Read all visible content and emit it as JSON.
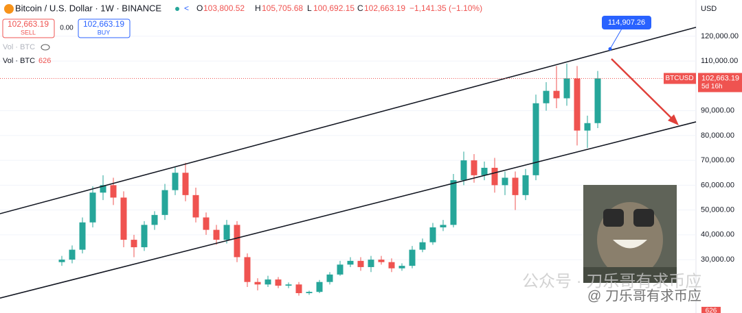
{
  "header": {
    "symbol": "Bitcoin / U.S. Dollar · 1W · BINANCE",
    "open_label": "O",
    "open": "103,800.52",
    "high_label": "H",
    "high": "105,705.68",
    "low_label": "L",
    "low": "100,692.15",
    "close_label": "C",
    "close": "102,663.19",
    "change": "−1,141.35 (−1.10%)"
  },
  "trade": {
    "sell_price": "102,663.19",
    "sell": "SELL",
    "spread": "0.00",
    "buy_price": "102,663.19",
    "buy": "BUY"
  },
  "indicators": {
    "vol_hidden": "Vol · BTC",
    "vol": "Vol · BTC",
    "vol_value": "626"
  },
  "currency": "USD",
  "price_tag": {
    "symbol": "BTCUSD",
    "price": "102,663.19",
    "countdown": "5d 16h"
  },
  "volume_tag": "626",
  "watermark": {
    "main": "公众号 · 刀乐哥有求币应",
    "handle": "@ 刀乐哥有求币应"
  },
  "chart_data": {
    "type": "candlestick",
    "open": [
      29000,
      30000,
      34000,
      45000,
      57000,
      60000,
      55000,
      38000,
      35000,
      44000,
      48000,
      58000,
      65000,
      56000,
      47000,
      42000,
      38000,
      44000,
      31000,
      21000,
      20000,
      22000,
      19500,
      20000,
      16500,
      17000,
      21000,
      24000,
      28000,
      29500,
      27000,
      30000,
      29000,
      26500,
      27500,
      34000,
      37000,
      43000,
      44000,
      62000,
      70000,
      64000,
      67000,
      60000,
      63000,
      56000,
      64000,
      93000,
      98000,
      95000,
      103000,
      82000,
      85000
    ],
    "high": [
      31500,
      35700,
      47000,
      59500,
      64000,
      63000,
      57500,
      40000,
      45500,
      49500,
      60500,
      67500,
      69000,
      59000,
      49000,
      44000,
      46000,
      45500,
      32500,
      22500,
      23500,
      23000,
      20800,
      21000,
      17500,
      21800,
      25000,
      29500,
      31000,
      31000,
      31500,
      31500,
      30500,
      28500,
      35500,
      38500,
      44800,
      46000,
      64500,
      73500,
      72500,
      69500,
      71000,
      65500,
      65500,
      66500,
      96500,
      101500,
      108000,
      109000,
      108000,
      88000,
      106000
    ],
    "low": [
      27500,
      28500,
      32500,
      43000,
      54000,
      52000,
      35000,
      31000,
      33500,
      42000,
      46000,
      56000,
      53500,
      45000,
      40000,
      36000,
      36500,
      29000,
      19000,
      17600,
      19000,
      18500,
      18500,
      15500,
      15800,
      16500,
      20000,
      23500,
      27000,
      25500,
      25000,
      28000,
      25000,
      25500,
      26500,
      33000,
      36000,
      41500,
      43000,
      60000,
      61000,
      62000,
      57000,
      56000,
      50000,
      54000,
      62000,
      90000,
      91000,
      92000,
      76000,
      75000,
      83000
    ],
    "close": [
      30000,
      34000,
      45000,
      57000,
      60000,
      55000,
      38000,
      35000,
      44000,
      48000,
      58000,
      65000,
      56000,
      47000,
      42000,
      38000,
      44000,
      31000,
      21000,
      20000,
      22000,
      19500,
      20000,
      16500,
      17000,
      21000,
      24000,
      28000,
      29500,
      27000,
      30000,
      29000,
      26500,
      27500,
      34000,
      37000,
      43000,
      44000,
      62000,
      70000,
      64000,
      67000,
      60000,
      63000,
      56000,
      64000,
      93000,
      98000,
      95000,
      103000,
      82000,
      85000,
      103000
    ],
    "up_color": "#26a69a",
    "down_color": "#ef5350",
    "ylim": [
      8500,
      134600
    ],
    "yticks": [
      {
        "value": 30000,
        "label": "30,000.00"
      },
      {
        "value": 40000,
        "label": "40,000.00"
      },
      {
        "value": 50000,
        "label": "50,000.00"
      },
      {
        "value": 60000,
        "label": "60,000.00"
      },
      {
        "value": 70000,
        "label": "70,000.00"
      },
      {
        "value": 80000,
        "label": "80,000.00"
      },
      {
        "value": 90000,
        "label": "90,000.00"
      },
      {
        "value": 110000,
        "label": "110,000.00"
      },
      {
        "value": 120000,
        "label": "120,000.00"
      }
    ],
    "channel": {
      "upper": [
        48500,
        123600
      ],
      "lower": [
        14500,
        85500
      ]
    },
    "callout": {
      "value": 114907.26,
      "label": "114,907.26"
    }
  }
}
